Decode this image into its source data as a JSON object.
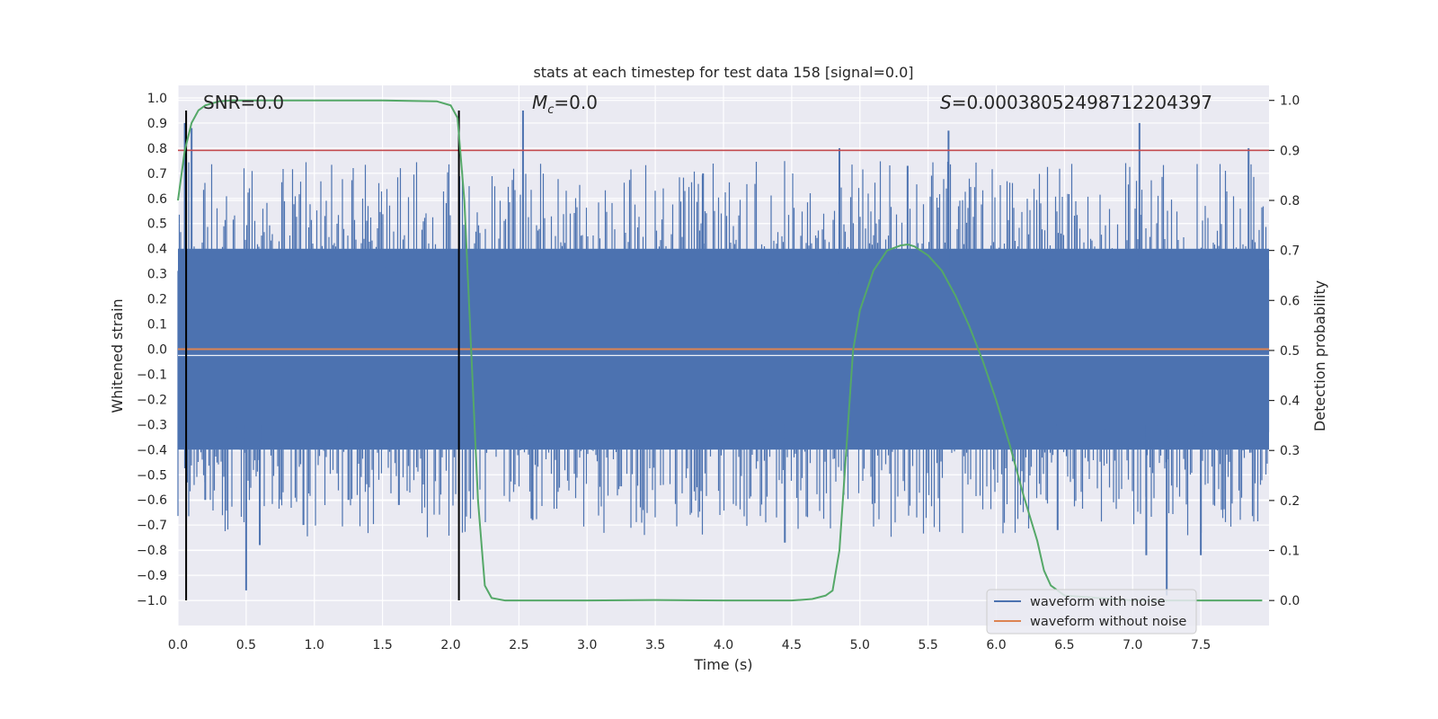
{
  "chart_data": {
    "type": "line",
    "title": "stats at each timestep for test data 158 [signal=0.0]",
    "xlabel": "Time (s)",
    "ylabel": "Whitened strain",
    "ylabel_right": "Detection probability",
    "xlim": [
      0.0,
      8.0
    ],
    "ylim": [
      -1.1,
      1.05
    ],
    "ylim_right": [
      -0.05,
      1.03
    ],
    "x_ticks": [
      0.0,
      0.5,
      1.0,
      1.5,
      2.0,
      2.5,
      3.0,
      3.5,
      4.0,
      4.5,
      5.0,
      5.5,
      6.0,
      6.5,
      7.0,
      7.5
    ],
    "x_tick_labels": [
      "0.0",
      "0.5",
      "1.0",
      "1.5",
      "2.0",
      "2.5",
      "3.0",
      "3.5",
      "4.0",
      "4.5",
      "5.0",
      "5.5",
      "6.0",
      "6.5",
      "7.0",
      "7.5"
    ],
    "y_ticks": [
      1.0,
      0.9,
      0.8,
      0.7,
      0.6,
      0.5,
      0.4,
      0.3,
      0.2,
      0.1,
      0.0,
      -0.1,
      -0.2,
      -0.3,
      -0.4,
      -0.5,
      -0.6,
      -0.7,
      -0.8,
      -0.9,
      -1.0
    ],
    "y_tick_labels": [
      "1.0",
      "0.9",
      "0.8",
      "0.7",
      "0.6",
      "0.5",
      "0.4",
      "0.3",
      "0.2",
      "0.1",
      "0.0",
      "−0.1",
      "−0.2",
      "−0.3",
      "−0.4",
      "−0.5",
      "−0.6",
      "−0.7",
      "−0.8",
      "−0.9",
      "−1.0"
    ],
    "y_ticks_right": [
      1.0,
      0.9,
      0.8,
      0.7,
      0.6,
      0.5,
      0.4,
      0.3,
      0.2,
      0.1,
      0.0
    ],
    "y_tick_labels_right": [
      "1.0",
      "0.9",
      "0.8",
      "0.7",
      "0.6",
      "0.5",
      "0.4",
      "0.3",
      "0.2",
      "0.1",
      "0.0"
    ],
    "annotations": {
      "snr": "SNR=0.0",
      "mc_symbol": "M",
      "mc_sub": "c",
      "mc_value": "=0.0",
      "s_symbol": "S",
      "s_value": "=0.00038052498712204397"
    },
    "legend": {
      "position": "lower-right",
      "entries": [
        {
          "label": "waveform with noise",
          "color": "#4c72b0"
        },
        {
          "label": "waveform without noise",
          "color": "#dd8452"
        }
      ]
    },
    "series": [
      {
        "name": "waveform with noise",
        "axis": "left",
        "color": "#4c72b0",
        "style": "noise-band",
        "band_low": -0.4,
        "band_high": 0.4,
        "peaks": [
          {
            "x": 0.05,
            "y": 0.9
          },
          {
            "x": 0.1,
            "y": 0.88
          },
          {
            "x": 0.2,
            "y": -0.6
          },
          {
            "x": 0.5,
            "y": -0.96
          },
          {
            "x": 0.6,
            "y": -0.78
          },
          {
            "x": 0.92,
            "y": -0.7
          },
          {
            "x": 1.25,
            "y": -0.6
          },
          {
            "x": 1.62,
            "y": -0.62
          },
          {
            "x": 2.53,
            "y": 0.95
          },
          {
            "x": 2.6,
            "y": -0.68
          },
          {
            "x": 3.85,
            "y": 0.7
          },
          {
            "x": 4.45,
            "y": -0.77
          },
          {
            "x": 4.85,
            "y": 0.8
          },
          {
            "x": 5.35,
            "y": 0.73
          },
          {
            "x": 5.65,
            "y": 0.87
          },
          {
            "x": 6.45,
            "y": -0.72
          },
          {
            "x": 7.05,
            "y": 0.9
          },
          {
            "x": 7.1,
            "y": -0.82
          },
          {
            "x": 7.25,
            "y": -0.98
          },
          {
            "x": 7.5,
            "y": -0.82
          },
          {
            "x": 7.85,
            "y": 0.8
          }
        ]
      },
      {
        "name": "waveform without noise",
        "axis": "left",
        "color": "#dd8452",
        "x": [
          0.0,
          8.0
        ],
        "y": [
          0.0,
          0.0
        ]
      },
      {
        "name": "Detection probability",
        "axis": "right",
        "color": "#55a868",
        "x": [
          0.0,
          0.05,
          0.1,
          0.15,
          0.2,
          0.3,
          0.4,
          0.5,
          1.0,
          1.5,
          1.9,
          2.0,
          2.05,
          2.1,
          2.15,
          2.2,
          2.25,
          2.3,
          2.4,
          3.0,
          3.5,
          4.0,
          4.5,
          4.65,
          4.75,
          4.8,
          4.85,
          4.9,
          4.95,
          5.0,
          5.1,
          5.2,
          5.3,
          5.35,
          5.4,
          5.5,
          5.6,
          5.7,
          5.8,
          5.9,
          6.0,
          6.1,
          6.2,
          6.3,
          6.35,
          6.4,
          6.5,
          7.0,
          7.5,
          7.95
        ],
        "y": [
          0.8,
          0.9,
          0.955,
          0.98,
          0.99,
          0.998,
          1.0,
          1.0,
          1.0,
          1.0,
          0.998,
          0.99,
          0.965,
          0.8,
          0.5,
          0.2,
          0.03,
          0.005,
          0.0,
          0.0,
          0.001,
          0.0,
          0.0,
          0.003,
          0.01,
          0.02,
          0.1,
          0.3,
          0.5,
          0.58,
          0.66,
          0.7,
          0.71,
          0.712,
          0.708,
          0.69,
          0.66,
          0.61,
          0.55,
          0.48,
          0.4,
          0.31,
          0.21,
          0.12,
          0.06,
          0.03,
          0.01,
          0.0,
          0.0,
          0.0
        ]
      }
    ],
    "reference_lines": [
      {
        "name": "threshold",
        "axis": "right",
        "orientation": "horizontal",
        "value": 0.9,
        "color": "#c44e52"
      },
      {
        "name": "event-start",
        "axis": "left",
        "orientation": "vertical",
        "value": 0.06,
        "range": [
          -1.0,
          0.95
        ],
        "color": "#000000"
      },
      {
        "name": "event-end",
        "axis": "left",
        "orientation": "vertical",
        "value": 2.06,
        "range": [
          -1.0,
          0.95
        ],
        "color": "#000000"
      }
    ],
    "grid": true
  }
}
